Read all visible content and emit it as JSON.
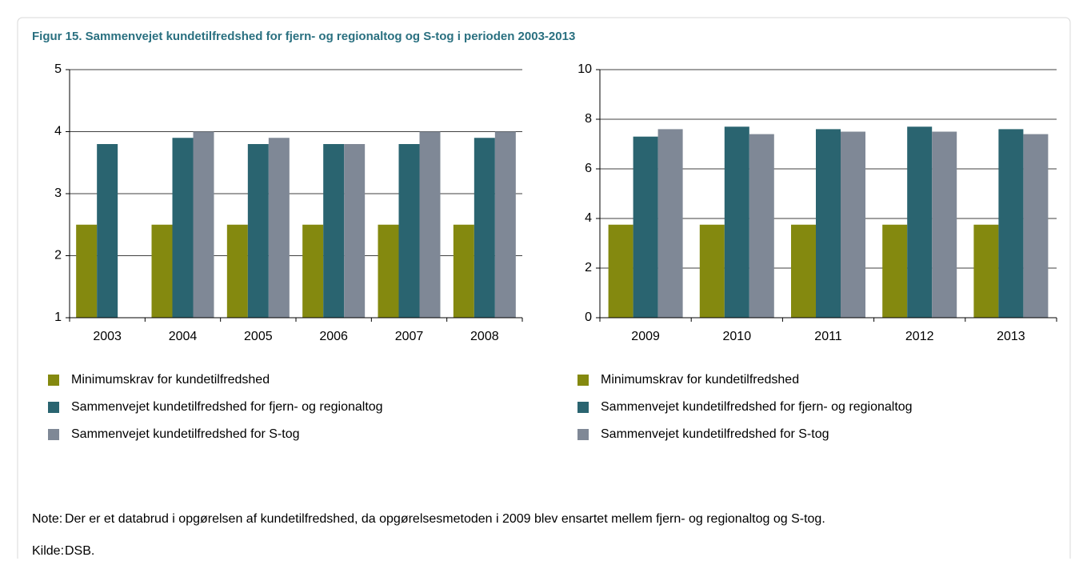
{
  "title": "Figur 15. Sammenvejet kundetilfredshed for fjern- og regionaltog og S-tog i perioden 2003-2013",
  "chart_data": [
    {
      "type": "bar",
      "categories": [
        "2003",
        "2004",
        "2005",
        "2006",
        "2007",
        "2008"
      ],
      "series": [
        {
          "name": "Minimumskrav for kundetilfredshed",
          "color": "#84890f",
          "values": [
            2.5,
            2.5,
            2.5,
            2.5,
            2.5,
            2.5
          ]
        },
        {
          "name": "Sammenvejet kundetilfredshed for fjern- og regionaltog",
          "color": "#2a6470",
          "values": [
            3.8,
            3.9,
            3.8,
            3.8,
            3.8,
            3.9
          ]
        },
        {
          "name": "Sammenvejet kundetilfredshed for S-tog",
          "color": "#7f8896",
          "values": [
            null,
            4.0,
            3.9,
            3.8,
            4.0,
            4.0
          ]
        }
      ],
      "ylim": [
        1,
        5
      ],
      "yticks": [
        1,
        2,
        3,
        4,
        5
      ],
      "grid": true
    },
    {
      "type": "bar",
      "categories": [
        "2009",
        "2010",
        "2011",
        "2012",
        "2013"
      ],
      "series": [
        {
          "name": "Minimumskrav for kundetilfredshed",
          "color": "#84890f",
          "values": [
            3.75,
            3.75,
            3.75,
            3.75,
            3.75
          ]
        },
        {
          "name": "Sammenvejet kundetilfredshed for fjern- og regionaltog",
          "color": "#2a6470",
          "values": [
            7.3,
            7.7,
            7.6,
            7.7,
            7.6
          ]
        },
        {
          "name": "Sammenvejet kundetilfredshed for S-tog",
          "color": "#7f8896",
          "values": [
            7.6,
            7.4,
            7.5,
            7.5,
            7.4
          ]
        }
      ],
      "ylim": [
        0,
        10
      ],
      "yticks": [
        0,
        2,
        4,
        6,
        8,
        10
      ],
      "grid": true
    }
  ],
  "note_label": "Note:",
  "note": "Der er et databrud i opgørelsen af kundetilfredshed, da opgørelsesmetoden i 2009 blev ensartet mellem fjern- og regionaltog og S-tog.",
  "source_label": "Kilde:",
  "source": "DSB."
}
